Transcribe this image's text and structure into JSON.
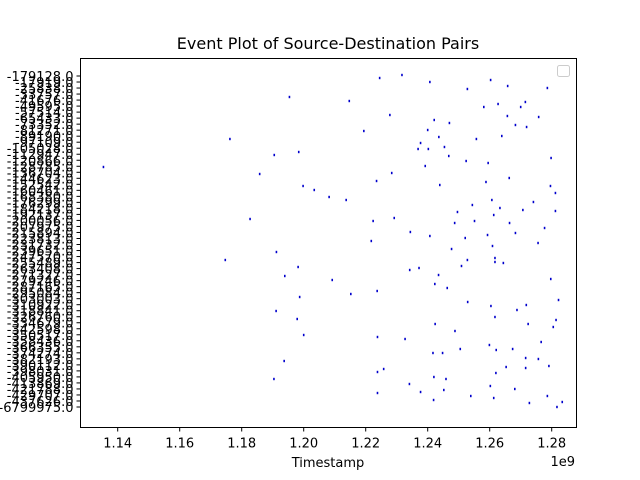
{
  "chart_data": {
    "type": "scatter",
    "title": "Event Plot of Source-Destination Pairs",
    "xlabel": "Timestamp",
    "ylabel": "",
    "x_offset_label": "1e9",
    "x_unit_scale": 1000000000,
    "xlim": [
      1.128,
      1.288
    ],
    "x_ticks": [
      1.14,
      1.16,
      1.18,
      1.2,
      1.22,
      1.24,
      1.26,
      1.28
    ],
    "y_ticks_count": 56,
    "y_tick_labels_visible": [
      "-179128.0",
      "-6799975.0"
    ],
    "event_color": "#0000cc",
    "grid": false,
    "legend": {
      "placement": "top-right",
      "entries": []
    },
    "points": [
      [
        1.2245,
        78
      ],
      [
        1.2317,
        75
      ],
      [
        1.2407,
        82
      ],
      [
        1.2528,
        89
      ],
      [
        1.2603,
        80
      ],
      [
        1.2658,
        86
      ],
      [
        1.2786,
        88
      ],
      [
        1.1954,
        97
      ],
      [
        1.2147,
        101
      ],
      [
        1.2278,
        115
      ],
      [
        1.2581,
        107
      ],
      [
        1.2627,
        104
      ],
      [
        1.27,
        107
      ],
      [
        1.2715,
        102
      ],
      [
        1.2657,
        116
      ],
      [
        1.2683,
        125
      ],
      [
        1.2719,
        127
      ],
      [
        1.2758,
        117
      ],
      [
        1.2421,
        120
      ],
      [
        1.247,
        123
      ],
      [
        1.2194,
        131
      ],
      [
        1.24,
        130
      ],
      [
        1.2436,
        137
      ],
      [
        1.2557,
        139
      ],
      [
        1.2639,
        136
      ],
      [
        1.1762,
        139
      ],
      [
        1.2377,
        143
      ],
      [
        1.2402,
        149
      ],
      [
        1.2454,
        147
      ],
      [
        1.2369,
        149
      ],
      [
        1.1905,
        155
      ],
      [
        1.1984,
        152
      ],
      [
        1.2468,
        156
      ],
      [
        1.2524,
        161
      ],
      [
        1.2595,
        163
      ],
      [
        1.2798,
        158
      ],
      [
        1.1354,
        167
      ],
      [
        1.1858,
        174
      ],
      [
        1.2082,
        197
      ],
      [
        1.2235,
        181
      ],
      [
        1.2284,
        173
      ],
      [
        1.2392,
        166
      ],
      [
        1.2439,
        185
      ],
      [
        1.2588,
        182
      ],
      [
        1.2663,
        178
      ],
      [
        1.2796,
        186
      ],
      [
        1.2812,
        193
      ],
      [
        1.1998,
        186
      ],
      [
        1.2034,
        190
      ],
      [
        1.2137,
        200
      ],
      [
        1.2496,
        212
      ],
      [
        1.2544,
        205
      ],
      [
        1.2607,
        200
      ],
      [
        1.2633,
        208
      ],
      [
        1.2707,
        210
      ],
      [
        1.2741,
        202
      ],
      [
        1.2812,
        211
      ],
      [
        1.2224,
        221
      ],
      [
        1.2292,
        218
      ],
      [
        1.2487,
        223
      ],
      [
        1.2551,
        221
      ],
      [
        1.2613,
        215
      ],
      [
        1.2664,
        223
      ],
      [
        1.2777,
        228
      ],
      [
        1.1827,
        219
      ],
      [
        1.2218,
        241
      ],
      [
        1.2344,
        232
      ],
      [
        1.2407,
        236
      ],
      [
        1.2477,
        249
      ],
      [
        1.2521,
        238
      ],
      [
        1.2593,
        235
      ],
      [
        1.2609,
        246
      ],
      [
        1.2683,
        233
      ],
      [
        1.2756,
        243
      ],
      [
        1.1912,
        252
      ],
      [
        1.1747,
        260
      ],
      [
        1.1982,
        267
      ],
      [
        1.1939,
        276
      ],
      [
        1.2092,
        280
      ],
      [
        1.2237,
        291
      ],
      [
        1.2342,
        270
      ],
      [
        1.2372,
        268
      ],
      [
        1.2435,
        275
      ],
      [
        1.2528,
        260
      ],
      [
        1.2617,
        258
      ],
      [
        1.2644,
        263
      ],
      [
        1.2797,
        279
      ],
      [
        1.2423,
        284
      ],
      [
        1.2463,
        288
      ],
      [
        1.2509,
        266
      ],
      [
        1.2617,
        262
      ],
      [
        1.1987,
        297
      ],
      [
        1.2152,
        294
      ],
      [
        1.2529,
        302
      ],
      [
        1.2604,
        306
      ],
      [
        1.2688,
        310
      ],
      [
        1.2718,
        305
      ],
      [
        1.2822,
        300
      ],
      [
        1.1911,
        311
      ],
      [
        1.1979,
        319
      ],
      [
        1.2,
        335
      ],
      [
        1.2238,
        337
      ],
      [
        1.2327,
        339
      ],
      [
        1.2424,
        324
      ],
      [
        1.2488,
        331
      ],
      [
        1.2617,
        317
      ],
      [
        1.2724,
        324
      ],
      [
        1.2814,
        320
      ],
      [
        1.2805,
        327
      ],
      [
        1.2766,
        342
      ],
      [
        1.2417,
        353
      ],
      [
        1.2448,
        353
      ],
      [
        1.2505,
        349
      ],
      [
        1.2599,
        345
      ],
      [
        1.2621,
        350
      ],
      [
        1.2674,
        349
      ],
      [
        1.2716,
        358
      ],
      [
        1.2757,
        359
      ],
      [
        1.1937,
        361
      ],
      [
        1.1904,
        379
      ],
      [
        1.2238,
        372
      ],
      [
        1.2258,
        369
      ],
      [
        1.2341,
        384
      ],
      [
        1.242,
        377
      ],
      [
        1.2459,
        379
      ],
      [
        1.262,
        373
      ],
      [
        1.2653,
        367
      ],
      [
        1.2716,
        368
      ],
      [
        1.2791,
        366
      ],
      [
        1.2238,
        393
      ],
      [
        1.2377,
        392
      ],
      [
        1.2452,
        390
      ],
      [
        1.2539,
        396
      ],
      [
        1.2602,
        386
      ],
      [
        1.2613,
        398
      ],
      [
        1.2681,
        389
      ],
      [
        1.2728,
        403
      ],
      [
        1.2786,
        396
      ],
      [
        1.2817,
        407
      ],
      [
        1.2834,
        402
      ],
      [
        1.2419,
        400
      ]
    ]
  }
}
